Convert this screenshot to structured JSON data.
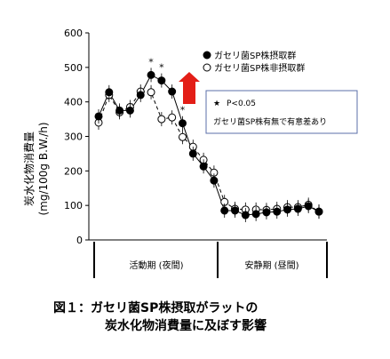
{
  "chart_data": {
    "type": "line",
    "ylabel": "炭水化物消費量",
    "ylabel_unit": "(mg/100g B.W./h)",
    "ylim": [
      0,
      600
    ],
    "yticks": [
      "0",
      "100",
      "200",
      "300",
      "400",
      "500",
      "600"
    ],
    "series": [
      {
        "name": "ガセリ菌SP株摂取群",
        "marker": "filled-circle",
        "line": "solid",
        "values": [
          358,
          428,
          375,
          375,
          420,
          478,
          462,
          430,
          338,
          250,
          213,
          172,
          85,
          85,
          72,
          75,
          80,
          82,
          88,
          90,
          98,
          82
        ]
      },
      {
        "name": "ガセリ菌SP株非摂取群",
        "marker": "open-circle",
        "line": "dashed",
        "values": [
          340,
          420,
          370,
          385,
          430,
          428,
          350,
          355,
          298,
          270,
          232,
          195,
          110,
          90,
          88,
          88,
          87,
          90,
          95,
          95,
          102,
          82
        ]
      }
    ],
    "significance_markers": [
      "*",
      "*",
      "*"
    ],
    "significance_indices": [
      5,
      6,
      8
    ],
    "annotation_lines": [
      "P<0.05",
      "ガセリ菌SP株有無で有意差あり"
    ],
    "annotation_star": "★",
    "periods": [
      "活動期 (夜間)",
      "安静期 (昼間)"
    ],
    "legend_position": "top-right",
    "grid": false,
    "colors": {
      "arrow": "#e31e17",
      "annot_border": "#5b6fa8",
      "series": "#000000"
    }
  },
  "caption": {
    "line1": "図１：ガセリ菌SP株摂取がラットの",
    "line2": "炭水化物消費量に及ぼす影響"
  }
}
